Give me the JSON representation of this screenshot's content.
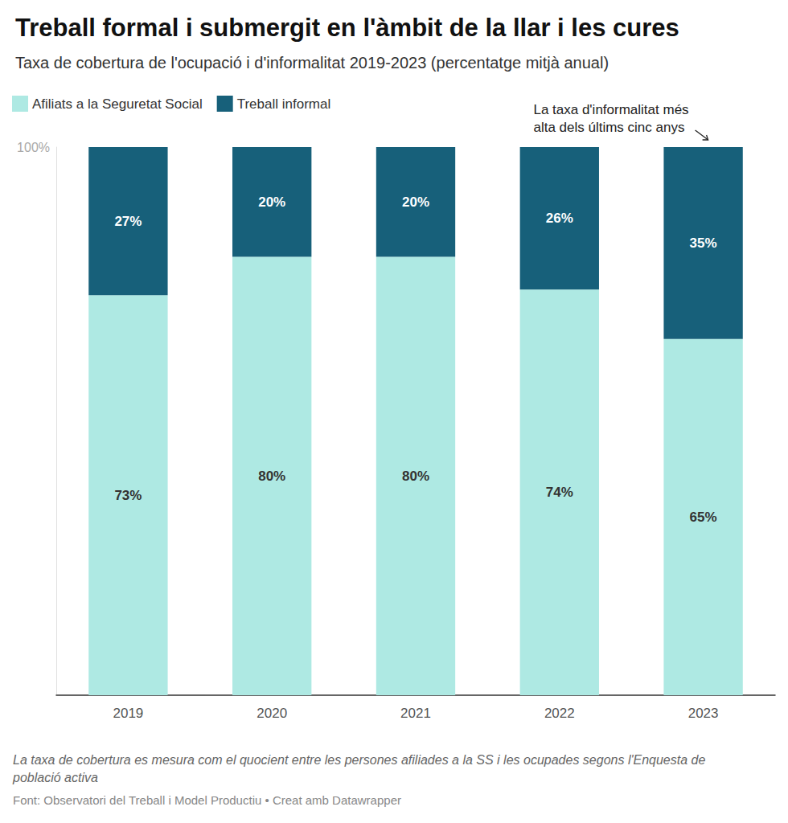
{
  "chart_data": {
    "type": "bar",
    "title": "Treball formal i submergit en l'àmbit de la llar i les cures",
    "subtitle": "Taxa de cobertura de l'ocupació i d'informalitat 2019-2023 (percentatge mitjà anual)",
    "categories": [
      "2019",
      "2020",
      "2021",
      "2022",
      "2023"
    ],
    "series": [
      {
        "name": "Afiliats a la Seguretat Social",
        "color": "#aee9e3",
        "values": [
          73,
          80,
          80,
          74,
          65
        ],
        "value_labels": [
          "73%",
          "80%",
          "80%",
          "74%",
          "65%"
        ]
      },
      {
        "name": "Treball informal",
        "color": "#17607a",
        "values": [
          27,
          20,
          20,
          26,
          35
        ],
        "value_labels": [
          "27%",
          "20%",
          "20%",
          "26%",
          "35%"
        ]
      }
    ],
    "stacked": true,
    "data_labels": true,
    "ylim": [
      0,
      100
    ],
    "yticks": [
      {
        "value": 100,
        "label": "100%"
      }
    ],
    "grid": false,
    "legend": "top-left",
    "annotations": [
      {
        "text": "La taxa d'informalitat més\nalta dels últims cinc anys",
        "category": "2023"
      }
    ],
    "note": "La taxa de cobertura es mesura com el quocient entre les persones afiliades a la SS i les ocupades segons l'Enquesta de població activa",
    "source": "Font: Observatori del Treball i Model Productiu • Creat amb Datawrapper"
  }
}
